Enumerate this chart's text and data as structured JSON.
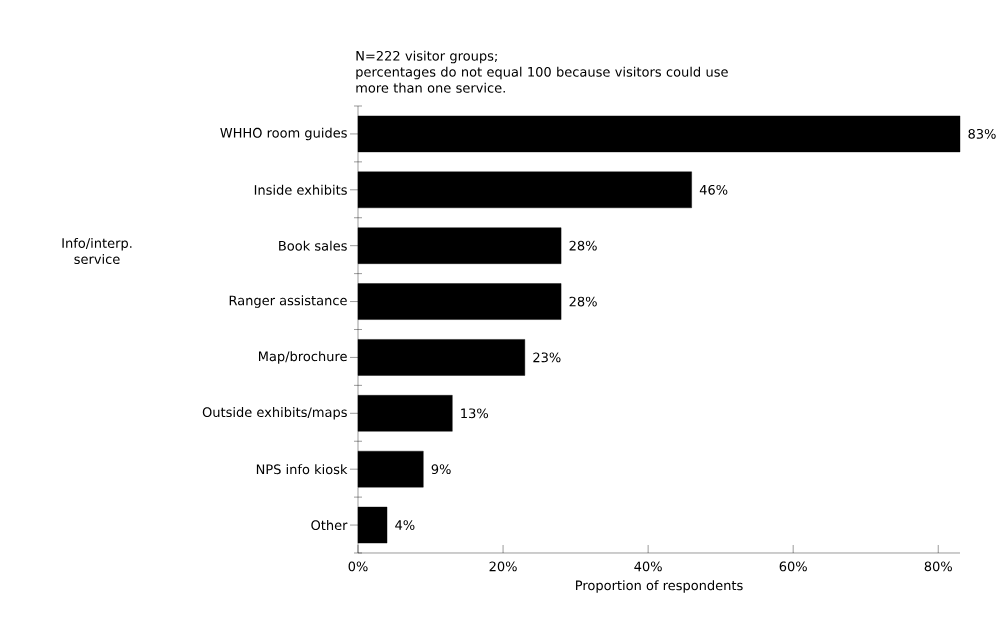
{
  "chart_data": {
    "type": "bar",
    "orientation": "horizontal",
    "categories": [
      "WHHO room guides",
      "Inside exhibits",
      "Book sales",
      "Ranger assistance",
      "Map/brochure",
      "Outside exhibits/maps",
      "NPS info kiosk",
      "Other"
    ],
    "values": [
      83,
      46,
      28,
      28,
      23,
      13,
      9,
      4
    ],
    "value_labels": [
      "83%",
      "46%",
      "28%",
      "28%",
      "23%",
      "13%",
      "9%",
      "4%"
    ],
    "color": "#000000",
    "xlim": [
      0,
      83
    ],
    "xticks": [
      {
        "value": 0,
        "label": "0%"
      },
      {
        "value": 20,
        "label": "20%"
      },
      {
        "value": 40,
        "label": "40%"
      },
      {
        "value": 60,
        "label": "60%"
      },
      {
        "value": 80,
        "label": "80%"
      }
    ],
    "xlabel": "Proportion of respondents",
    "annotations": [
      "N=222 visitor groups;",
      "percentages do not equal 100 because visitors could use more than one service.",
      "Info/interp. service"
    ],
    "grid": false
  }
}
